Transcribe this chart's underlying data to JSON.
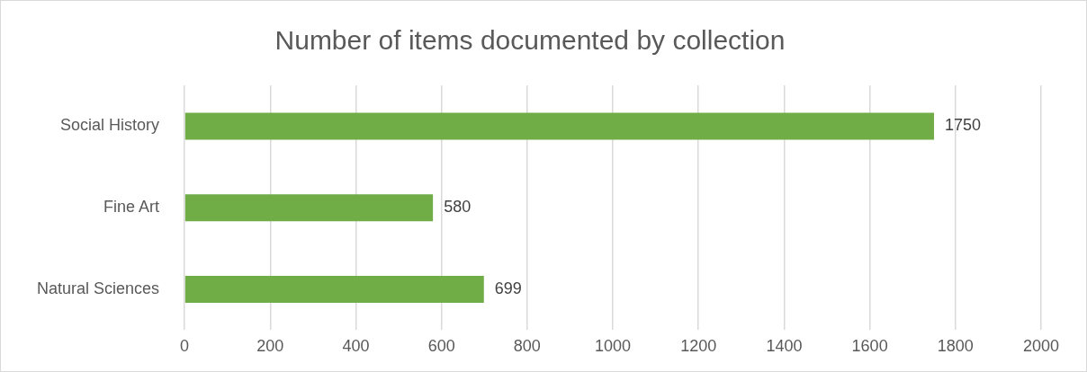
{
  "chart_data": {
    "type": "bar",
    "orientation": "horizontal",
    "title": "Number of items documented by collection",
    "categories": [
      "Social History",
      "Fine Art",
      "Natural Sciences"
    ],
    "values": [
      1750,
      580,
      699
    ],
    "color": "#70ad47",
    "xlim": [
      0,
      2000
    ],
    "xticks": [
      0,
      200,
      400,
      600,
      800,
      1000,
      1200,
      1400,
      1600,
      1800,
      2000
    ],
    "grid": "x",
    "legend": false,
    "data_labels": true
  }
}
